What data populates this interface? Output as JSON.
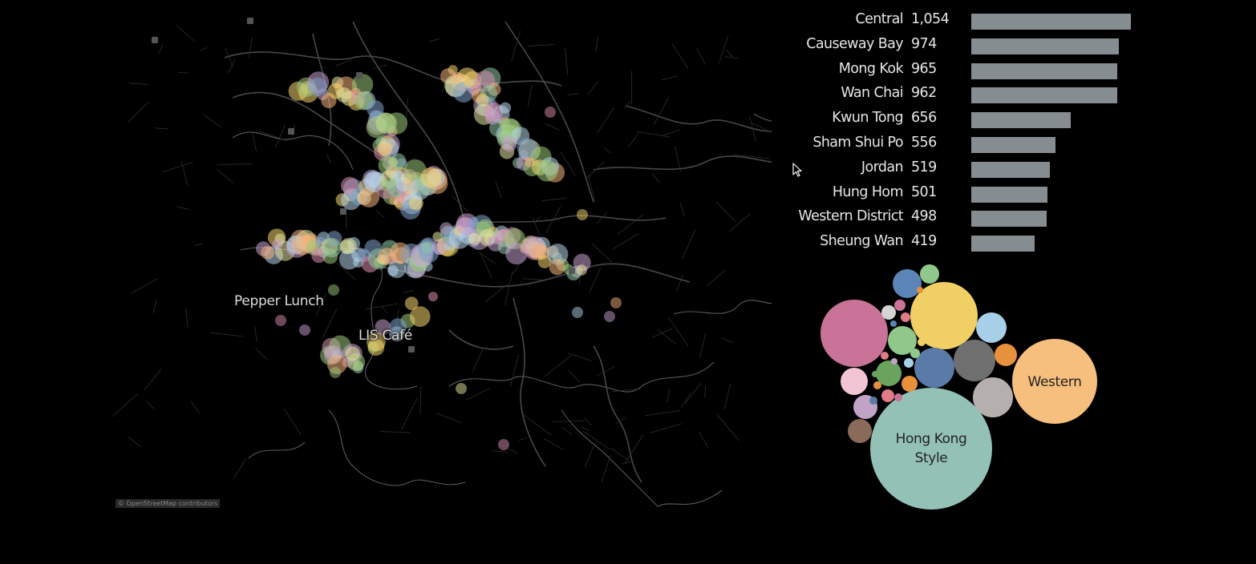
{
  "map": {
    "labels": [
      "Pepper Lunch",
      "LIS Café"
    ],
    "attribution": "© OpenStreetMap contributors",
    "point_colors": [
      "#f5d56b",
      "#e5e5a0",
      "#8fc7a6",
      "#7fa0c9",
      "#f2b27c",
      "#d98fb0",
      "#9bc97a",
      "#b4d4e9",
      "#c7a0d0"
    ]
  },
  "neighbourhoods": [
    {
      "name": "Central",
      "value_label": "1,054",
      "value": 1054
    },
    {
      "name": "Causeway Bay",
      "value_label": "974",
      "value": 974
    },
    {
      "name": "Mong Kok",
      "value_label": "965",
      "value": 965
    },
    {
      "name": "Wan Chai",
      "value_label": "962",
      "value": 962
    },
    {
      "name": "Kwun Tong",
      "value_label": "656",
      "value": 656
    },
    {
      "name": "Sham Shui Po",
      "value_label": "556",
      "value": 556
    },
    {
      "name": "Jordan",
      "value_label": "519",
      "value": 519
    },
    {
      "name": "Hung Hom",
      "value_label": "501",
      "value": 501
    },
    {
      "name": "Western District",
      "value_label": "498",
      "value": 498
    },
    {
      "name": "Sheung Wan",
      "value_label": "419",
      "value": 419
    }
  ],
  "bar_color": "#858d91",
  "cuisines": {
    "labeled": [
      {
        "name_lines": [
          "Hong Kong",
          "Style"
        ],
        "color": "#93c1b6"
      },
      {
        "name_lines": [
          "Western"
        ],
        "color": "#f6bf7e"
      }
    ],
    "unlabeled_colors": [
      "#c87397",
      "#f0cf65",
      "#6f6f6f",
      "#5a7aa8",
      "#b5b0ae",
      "#a7cfe8",
      "#5b84b8",
      "#8fc88a",
      "#6aa35d",
      "#f2c5d4",
      "#c3a2c8",
      "#8a6a58",
      "#e8913d",
      "#d4d4d4",
      "#e07b88"
    ]
  }
}
